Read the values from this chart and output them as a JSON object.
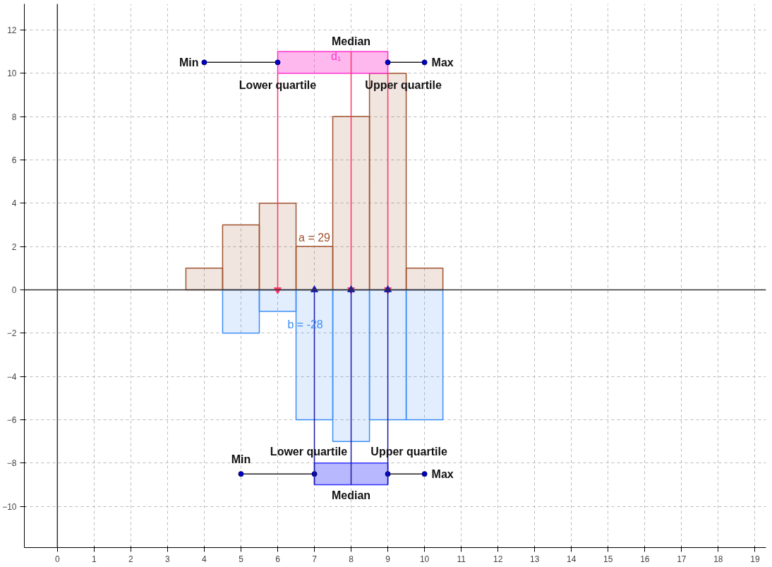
{
  "chart_data": {
    "type": "bar",
    "xlim": [
      -0.9,
      19.3
    ],
    "ylim": [
      -11.9,
      13.2
    ],
    "xticks": [
      0,
      1,
      2,
      3,
      4,
      5,
      6,
      7,
      8,
      9,
      10,
      11,
      12,
      13,
      14,
      15,
      16,
      17,
      18,
      19
    ],
    "yticks": [
      -10,
      -8,
      -6,
      -4,
      -2,
      0,
      2,
      4,
      6,
      8,
      10,
      12
    ],
    "grid": true,
    "series": [
      {
        "color": "#a0522d",
        "x": [
          4,
          5,
          6,
          7,
          8,
          9,
          10
        ],
        "values": [
          1,
          3,
          4,
          2,
          8,
          10,
          1
        ]
      },
      {
        "color": "#3d8ef5",
        "x": [
          5,
          6,
          7,
          8,
          9,
          10
        ],
        "values": [
          -2,
          -1,
          -6,
          -7,
          -6,
          -6
        ]
      },
      {
        "type": "line",
        "color": "#ff33cc",
        "x": [
          6,
          9
        ],
        "values": [
          null,
          null
        ],
        "lower": [
          10,
          10
        ],
        "upper": [
          11,
          11
        ]
      },
      {
        "type": "line",
        "color": "#222222",
        "marker": "circle",
        "x": [
          4,
          6
        ],
        "values": [
          10.5,
          10.5
        ]
      },
      {
        "type": "line",
        "color": "#222222",
        "marker": "circle",
        "x": [
          9,
          10
        ],
        "values": [
          10.5,
          10.5
        ]
      },
      {
        "type": "line",
        "color": "#ff3366",
        "x": [
          6,
          6
        ],
        "values": [
          10,
          0
        ]
      },
      {
        "type": "line",
        "color": "#ff3366",
        "x": [
          8,
          8
        ],
        "values": [
          11,
          0
        ]
      },
      {
        "type": "line",
        "color": "#ff3366",
        "x": [
          9,
          9
        ],
        "values": [
          10,
          0
        ]
      },
      {
        "type": "line",
        "color": "#3333ff",
        "x": [
          7,
          9
        ],
        "values": [
          null,
          null
        ],
        "lower": [
          -9,
          -9
        ],
        "upper": [
          -8,
          -8
        ]
      },
      {
        "type": "line",
        "color": "#222222",
        "marker": "circle",
        "x": [
          5,
          7
        ],
        "values": [
          -8.5,
          -8.5
        ]
      },
      {
        "type": "line",
        "color": "#222222",
        "marker": "circle",
        "x": [
          9,
          10
        ],
        "values": [
          -8.5,
          -8.5
        ]
      },
      {
        "type": "line",
        "color": "#1a1aa6",
        "x": [
          7,
          7
        ],
        "values": [
          -9,
          0
        ]
      },
      {
        "type": "line",
        "color": "#1a1aa6",
        "x": [
          8,
          8
        ],
        "values": [
          -9,
          0
        ]
      },
      {
        "type": "line",
        "color": "#1a1aa6",
        "x": [
          9,
          9
        ],
        "values": [
          -9,
          0
        ]
      }
    ],
    "annotations": [
      {
        "text": "Min",
        "x": 4,
        "y": 10.5
      },
      {
        "text": "Max",
        "x": 10,
        "y": 10.5
      },
      {
        "text": "Median",
        "x": 8,
        "y": 11
      },
      {
        "text": "Lower quartile",
        "x": 6,
        "y": 10
      },
      {
        "text": "Upper quartile",
        "x": 9,
        "y": 10
      },
      "d₁",
      {
        "text": "a = 29",
        "x": 7,
        "y": 2
      },
      {
        "text": "b = -28",
        "x": 6,
        "y": -1
      },
      {
        "text": "Min",
        "x": 5,
        "y": -8.5
      },
      {
        "text": "Max",
        "x": 10,
        "y": -8.5
      },
      {
        "text": "Median",
        "x": 8,
        "y": -9
      },
      {
        "text": "Lower quartile",
        "x": 7,
        "y": -8
      },
      {
        "text": "Upper quartile",
        "x": 9,
        "y": -8
      }
    ]
  }
}
